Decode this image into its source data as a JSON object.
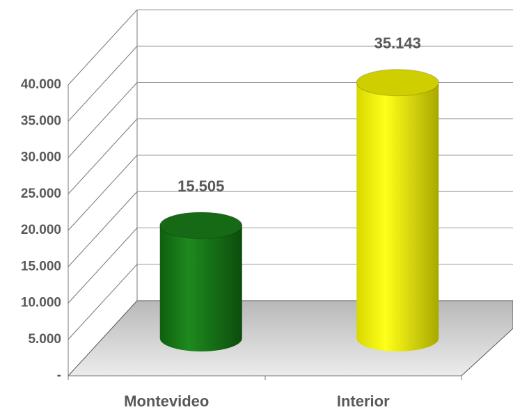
{
  "chart_data": {
    "type": "bar",
    "categories": [
      "Montevideo",
      "Interior"
    ],
    "values": [
      15505,
      35143
    ],
    "value_labels": [
      "15.505",
      "35.143"
    ],
    "colors": [
      "#1a7d1a",
      "#f2f200"
    ],
    "ylim": [
      0,
      40000
    ],
    "yticks": [
      {
        "value": 0,
        "label": "-"
      },
      {
        "value": 5000,
        "label": "5.000"
      },
      {
        "value": 10000,
        "label": "10.000"
      },
      {
        "value": 15000,
        "label": "15.000"
      },
      {
        "value": 20000,
        "label": "20.000"
      },
      {
        "value": 25000,
        "label": "25.000"
      },
      {
        "value": 30000,
        "label": "30.000"
      },
      {
        "value": 35000,
        "label": "35.000"
      },
      {
        "value": 40000,
        "label": "40.000"
      }
    ],
    "grid": true
  }
}
